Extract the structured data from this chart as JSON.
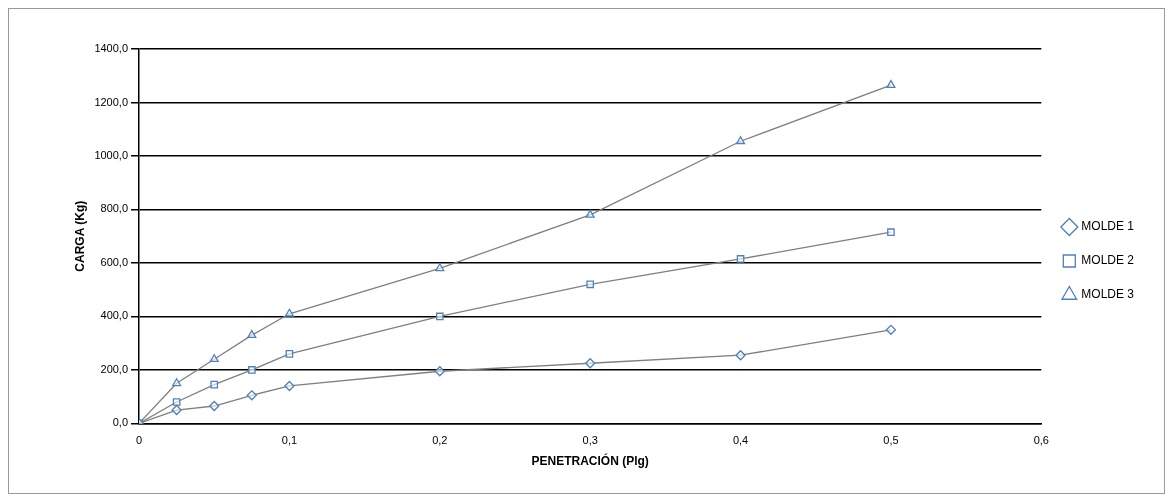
{
  "chart_data": {
    "type": "line",
    "xlabel": "PENETRACIÓN (Plg)",
    "ylabel": "CARGA (Kg)",
    "x": [
      0,
      0.025,
      0.05,
      0.075,
      0.1,
      0.2,
      0.3,
      0.4,
      0.5
    ],
    "xlim": [
      0,
      0.6
    ],
    "xticks": [
      {
        "value": 0,
        "label": "0"
      },
      {
        "value": 0.1,
        "label": "0,1"
      },
      {
        "value": 0.2,
        "label": "0,2"
      },
      {
        "value": 0.3,
        "label": "0,3"
      },
      {
        "value": 0.4,
        "label": "0,4"
      },
      {
        "value": 0.5,
        "label": "0,5"
      },
      {
        "value": 0.6,
        "label": "0,6"
      }
    ],
    "ylim": [
      0,
      1400
    ],
    "yticks": [
      {
        "value": 0,
        "label": "0,0"
      },
      {
        "value": 200,
        "label": "200,0"
      },
      {
        "value": 400,
        "label": "400,0"
      },
      {
        "value": 600,
        "label": "600,0"
      },
      {
        "value": 800,
        "label": "800,0"
      },
      {
        "value": 1000,
        "label": "1000,0"
      },
      {
        "value": 1200,
        "label": "1200,0"
      },
      {
        "value": 1400,
        "label": "1400,0"
      }
    ],
    "grid": "y",
    "legend": "right",
    "series": [
      {
        "name": "MOLDE 1",
        "color": "#4f81bd",
        "marker": "diamond",
        "values": [
          0,
          50,
          65,
          105,
          140,
          195,
          225,
          255,
          350
        ]
      },
      {
        "name": "MOLDE 2",
        "color": "#4f81bd",
        "marker": "square",
        "values": [
          0,
          80,
          145,
          200,
          260,
          400,
          520,
          615,
          715
        ]
      },
      {
        "name": "MOLDE 3",
        "color": "#4f81bd",
        "marker": "triangle",
        "values": [
          0,
          150,
          240,
          330,
          410,
          580,
          780,
          1055,
          1265
        ]
      }
    ]
  }
}
